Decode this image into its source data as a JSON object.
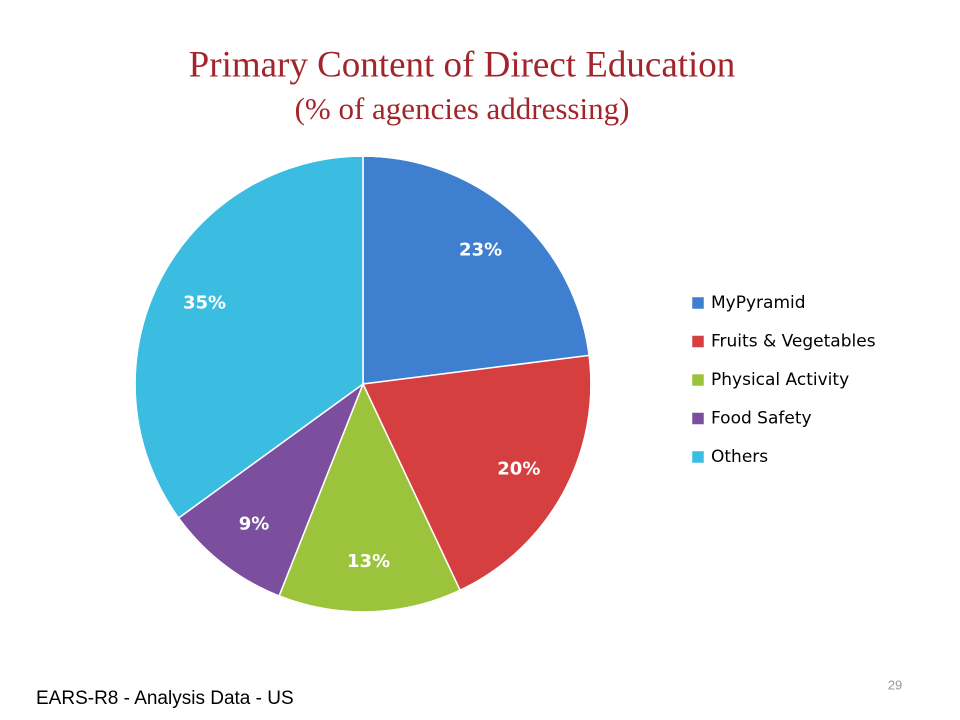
{
  "chart_data": {
    "type": "pie",
    "title": "Primary Content of Direct Education",
    "subtitle": "(% of agencies addressing)",
    "categories": [
      "MyPyramid",
      "Fruits & Vegetables",
      "Physical Activity",
      "Food Safety",
      "Others"
    ],
    "values": [
      23,
      20,
      13,
      9,
      35
    ],
    "value_labels": [
      "23%",
      "20%",
      "13%",
      "9%",
      "35%"
    ],
    "colors": [
      "#3f7fcf",
      "#d63f3f",
      "#9bc43c",
      "#7b4f9e",
      "#3bbde1"
    ],
    "legend": "right"
  },
  "footer": {
    "source": "EARS-R8 - Analysis Data - US",
    "page_number": "29"
  }
}
